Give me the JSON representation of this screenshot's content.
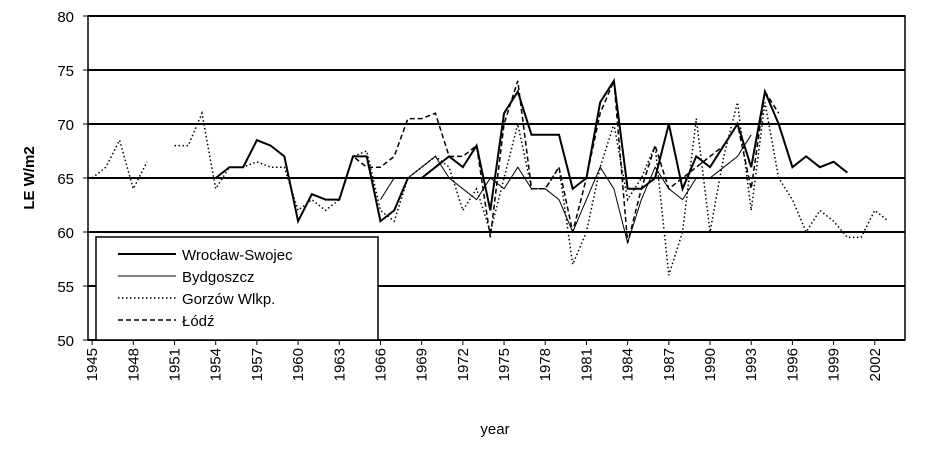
{
  "chart_data": {
    "type": "line",
    "y_label": "LE  W/m2",
    "x_label": "year",
    "x": [
      1945,
      1946,
      1947,
      1948,
      1949,
      1950,
      1951,
      1952,
      1953,
      1954,
      1955,
      1956,
      1957,
      1958,
      1959,
      1960,
      1961,
      1962,
      1963,
      1964,
      1965,
      1966,
      1967,
      1968,
      1969,
      1970,
      1971,
      1972,
      1973,
      1974,
      1975,
      1976,
      1977,
      1978,
      1979,
      1980,
      1981,
      1982,
      1983,
      1984,
      1985,
      1986,
      1987,
      1988,
      1989,
      1990,
      1991,
      1992,
      1993,
      1994,
      1995,
      1996,
      1997,
      1998,
      1999,
      2000,
      2001,
      2002,
      2003
    ],
    "series": [
      {
        "name": "Wrocław-Swojec",
        "color": "#000000",
        "style": "solid",
        "width": 2,
        "values": [
          null,
          null,
          null,
          null,
          null,
          null,
          null,
          null,
          null,
          65,
          66,
          66,
          68.5,
          68,
          67,
          61,
          63.5,
          63,
          63,
          67,
          67,
          61,
          62,
          65,
          65,
          66,
          67,
          66,
          68,
          62,
          71,
          73,
          69,
          69,
          69,
          64,
          65,
          72,
          74,
          64,
          64,
          65,
          70,
          64,
          67,
          66,
          68,
          70,
          66,
          73,
          70,
          66,
          67,
          66,
          66.5,
          65.5,
          null,
          null,
          null
        ]
      },
      {
        "name": "Bydgoszcz",
        "color": "#000000",
        "style": "solid",
        "width": 1,
        "values": [
          null,
          null,
          null,
          null,
          null,
          null,
          null,
          null,
          null,
          null,
          null,
          null,
          null,
          null,
          null,
          null,
          null,
          null,
          null,
          null,
          null,
          63,
          65,
          65,
          66,
          67,
          65,
          64,
          63,
          65,
          64,
          66,
          64,
          64,
          63,
          60,
          63,
          66,
          64,
          59,
          63,
          66,
          64,
          63,
          65,
          65,
          66,
          67,
          69,
          null,
          null,
          null,
          null,
          null,
          null,
          null,
          null,
          null,
          null
        ]
      },
      {
        "name": "Gorzów Wlkp.",
        "color": "#000000",
        "style": "dotted",
        "width": 1.5,
        "values": [
          65,
          66,
          68.5,
          64,
          66.5,
          null,
          68,
          68,
          71,
          64,
          66,
          66,
          66.5,
          66,
          66,
          62,
          63,
          62,
          63,
          67,
          67.5,
          62,
          61,
          65,
          66,
          67,
          66,
          62,
          64,
          60,
          65,
          70,
          64,
          64,
          66,
          57,
          60,
          66,
          70,
          63,
          65,
          68,
          56,
          60,
          70.5,
          60,
          67,
          72,
          62,
          72,
          65,
          63,
          60,
          62,
          61,
          59.5,
          59.5,
          62,
          61
        ]
      },
      {
        "name": "Łódź",
        "color": "#000000",
        "style": "dashed",
        "width": 1.5,
        "values": [
          null,
          null,
          null,
          null,
          null,
          null,
          null,
          null,
          null,
          null,
          null,
          null,
          null,
          null,
          null,
          null,
          null,
          null,
          63,
          67,
          66,
          66,
          67,
          70.5,
          70.5,
          71,
          67,
          67,
          68,
          59.5,
          70,
          74,
          64,
          64,
          66,
          60,
          65,
          71,
          74,
          59,
          64,
          68,
          64,
          65,
          66,
          67,
          68,
          70,
          64,
          73,
          71,
          null,
          null,
          null,
          null,
          null,
          null,
          null,
          null
        ]
      }
    ],
    "xlim": [
      1944.7,
      2004.2
    ],
    "xticks": [
      1945,
      1948,
      1951,
      1954,
      1957,
      1960,
      1963,
      1966,
      1969,
      1972,
      1975,
      1978,
      1981,
      1984,
      1987,
      1990,
      1993,
      1996,
      1999,
      2002
    ],
    "ylim": [
      50,
      80
    ],
    "yticks": [
      50,
      55,
      60,
      65,
      70,
      75,
      80
    ],
    "grid": true,
    "legend": "bottom-left"
  }
}
